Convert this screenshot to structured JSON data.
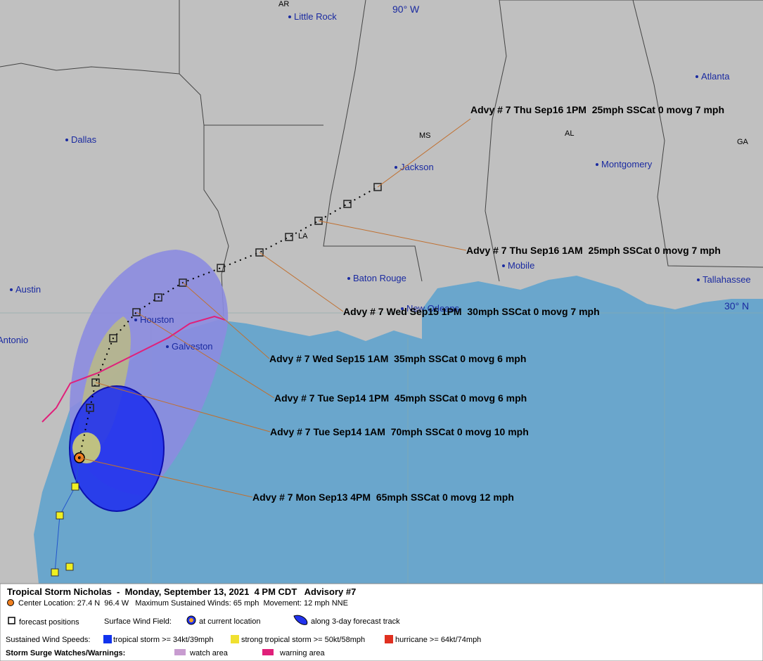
{
  "cities": [
    "Little Rock",
    "Dallas",
    "Jackson",
    "Atlanta",
    "Montgomery",
    "Mobile",
    "Baton Rouge",
    "New Orleans",
    "Houston",
    "Galveston",
    "Austin",
    "Antonio",
    "Tallahassee"
  ],
  "states": [
    "AR",
    "MS",
    "AL",
    "GA",
    "LA"
  ],
  "grid_labels": [
    "90° W",
    "30° N"
  ],
  "advisories": [
    "Advy # 7 Thu Sep16 1PM  25mph SSCat 0 movg 7 mph",
    "Advy # 7 Thu Sep16 1AM  25mph SSCat 0 movg 7 mph",
    "Advy # 7 Wed Sep15 1PM  30mph SSCat 0 movg 7 mph",
    "Advy # 7 Wed Sep15 1AM  35mph SSCat 0 movg 6 mph",
    "Advy # 7 Tue Sep14 1PM  45mph SSCat 0 movg 6 mph",
    "Advy # 7 Tue Sep14 1AM  70mph SSCat 0 movg 10 mph",
    "Advy # 7 Mon Sep13 4PM  65mph SSCat 0 movg 12 mph"
  ],
  "legend": {
    "title": "Tropical Storm Nicholas  -  Monday, September 13, 2021  4 PM CDT   Advisory #7",
    "center": "Center Location: 27.4 N  96.4 W   Maximum Sustained Winds: 65 mph  Movement: 12 mph NNE",
    "forecast_positions": "forecast positions",
    "surface_wind_field": "Surface Wind Field:",
    "at_current_location": "at current location",
    "along_track": "along 3-day forecast track",
    "sustained_wind_speeds": "Sustained Wind Speeds:",
    "tropical_storm": "tropical storm >= 34kt/39mph",
    "strong_tropical_storm": "strong tropical storm >= 50kt/58mph",
    "hurricane": "hurricane >= 64kt/74mph",
    "storm_surge": "Storm Surge Watches/Warnings:",
    "watch_area": "watch area",
    "warning_area": "warning area"
  }
}
